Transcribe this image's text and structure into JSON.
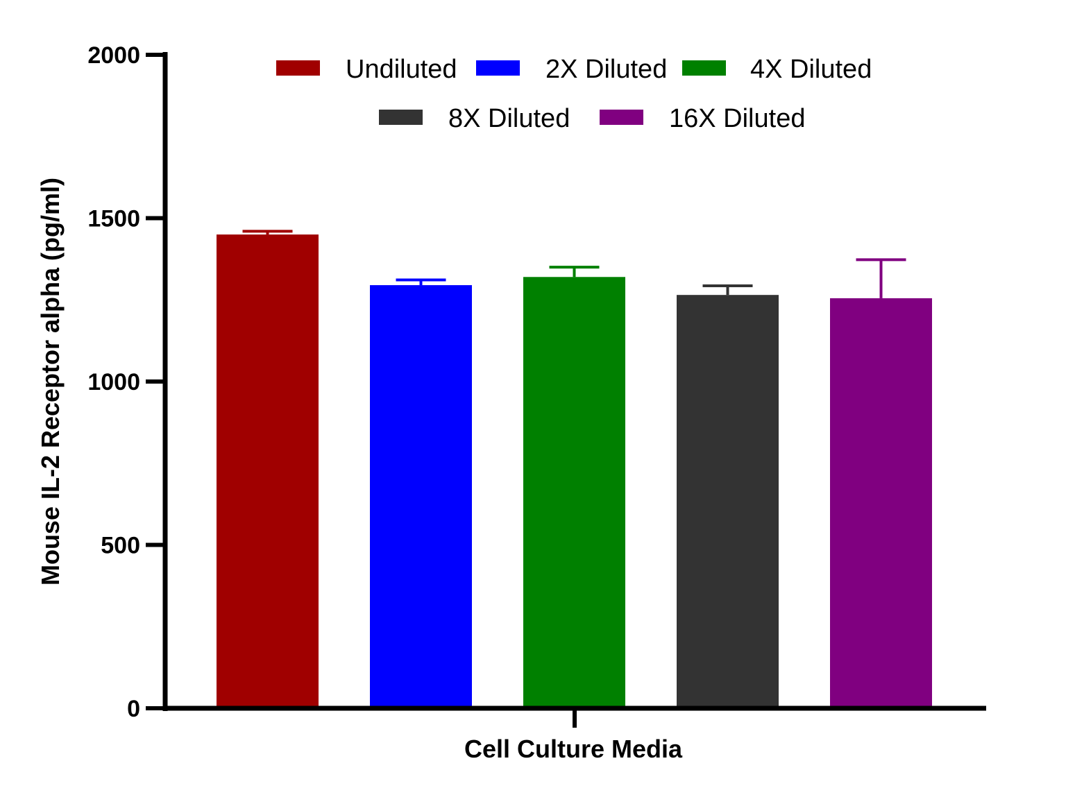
{
  "chart_data": {
    "type": "bar",
    "title": "",
    "xlabel": "Cell Culture Media",
    "ylabel": "Mouse IL-2 Receptor alpha (pg/ml)",
    "ylim": [
      0,
      2000
    ],
    "yticks": [
      "0",
      "500",
      "1000",
      "1500",
      "2000"
    ],
    "grid": false,
    "legend_position": "top",
    "categories": [
      "Cell Culture Media"
    ],
    "series": [
      {
        "name": "Undiluted",
        "color": "#a00000",
        "values": [
          1450
        ],
        "error": [
          10
        ]
      },
      {
        "name": "2X Diluted",
        "color": "#0000ff",
        "values": [
          1295
        ],
        "error": [
          16
        ]
      },
      {
        "name": "4X Diluted",
        "color": "#008000",
        "values": [
          1320
        ],
        "error": [
          30
        ]
      },
      {
        "name": "8X Diluted",
        "color": "#333333",
        "values": [
          1265
        ],
        "error": [
          28
        ]
      },
      {
        "name": "16X Diluted",
        "color": "#800080",
        "values": [
          1255
        ],
        "error": [
          118
        ]
      }
    ]
  }
}
